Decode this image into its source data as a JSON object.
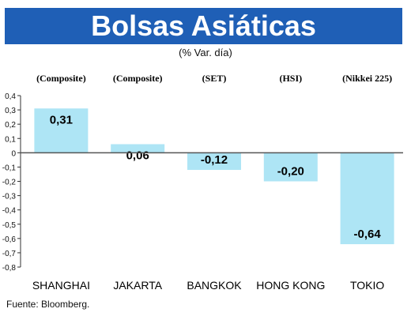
{
  "title": "Bolsas Asiáticas",
  "subtitle": "(% Var. día)",
  "source": "Fuente: Bloomberg.",
  "colors": {
    "title_bg": "#1f5fb6",
    "bar": "#aee5f5",
    "zero_line": "#555555",
    "grid": "#bfbfbf"
  },
  "chart_data": {
    "type": "bar",
    "title": "Bolsas Asiáticas",
    "subtitle": "(% Var. día)",
    "categories": [
      "SHANGHAI",
      "JAKARTA",
      "BANGKOK",
      "HONG KONG",
      "TOKIO"
    ],
    "index_labels": [
      "(Composite)",
      "(Composite)",
      "(SET)",
      "(HSI)",
      "(Nikkei 225)"
    ],
    "values": [
      0.31,
      0.06,
      -0.12,
      -0.2,
      -0.64
    ],
    "value_labels": [
      "0,31",
      "0,06",
      "-0,12",
      "-0,20",
      "-0,64"
    ],
    "y_ticks": [
      0.4,
      0.3,
      0.2,
      0.1,
      0,
      -0.1,
      -0.2,
      -0.3,
      -0.4,
      -0.5,
      -0.6,
      -0.7,
      -0.8
    ],
    "y_tick_labels": [
      "0,4",
      "0,3",
      "0,2",
      "0,1",
      "0",
      "-0,1",
      "-0,2",
      "-0,3",
      "-0,4",
      "-0,5",
      "-0,6",
      "-0,7",
      "-0,8"
    ],
    "ylim": [
      -0.8,
      0.4
    ],
    "grid": false,
    "legend": "none"
  }
}
